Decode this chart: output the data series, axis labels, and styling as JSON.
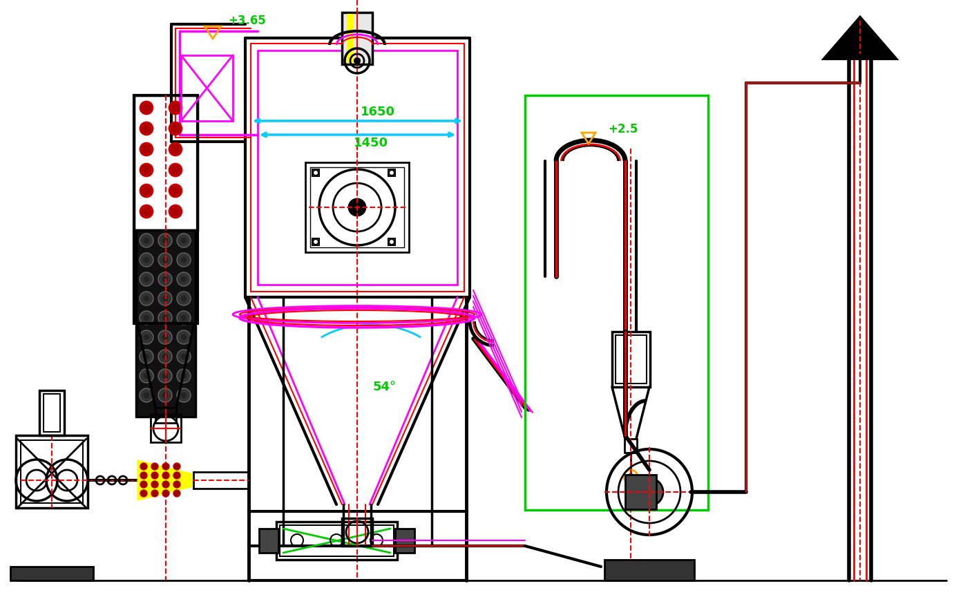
{
  "bg_color": "#ffffff",
  "colors": {
    "black": "#000000",
    "red": "#ff0000",
    "magenta": "#ff00ff",
    "cyan": "#00ccff",
    "green": "#00cc00",
    "yellow": "#ffff00",
    "orange": "#ffa500",
    "dark_red": "#cc0000",
    "dark_gray": "#333333",
    "med_gray": "#666666"
  },
  "annotations": {
    "elevation_top": "+3.65",
    "elevation_mid": "+2.5",
    "dim_1650": "1650",
    "dim_1450": "1450",
    "angle_54": "54°"
  }
}
